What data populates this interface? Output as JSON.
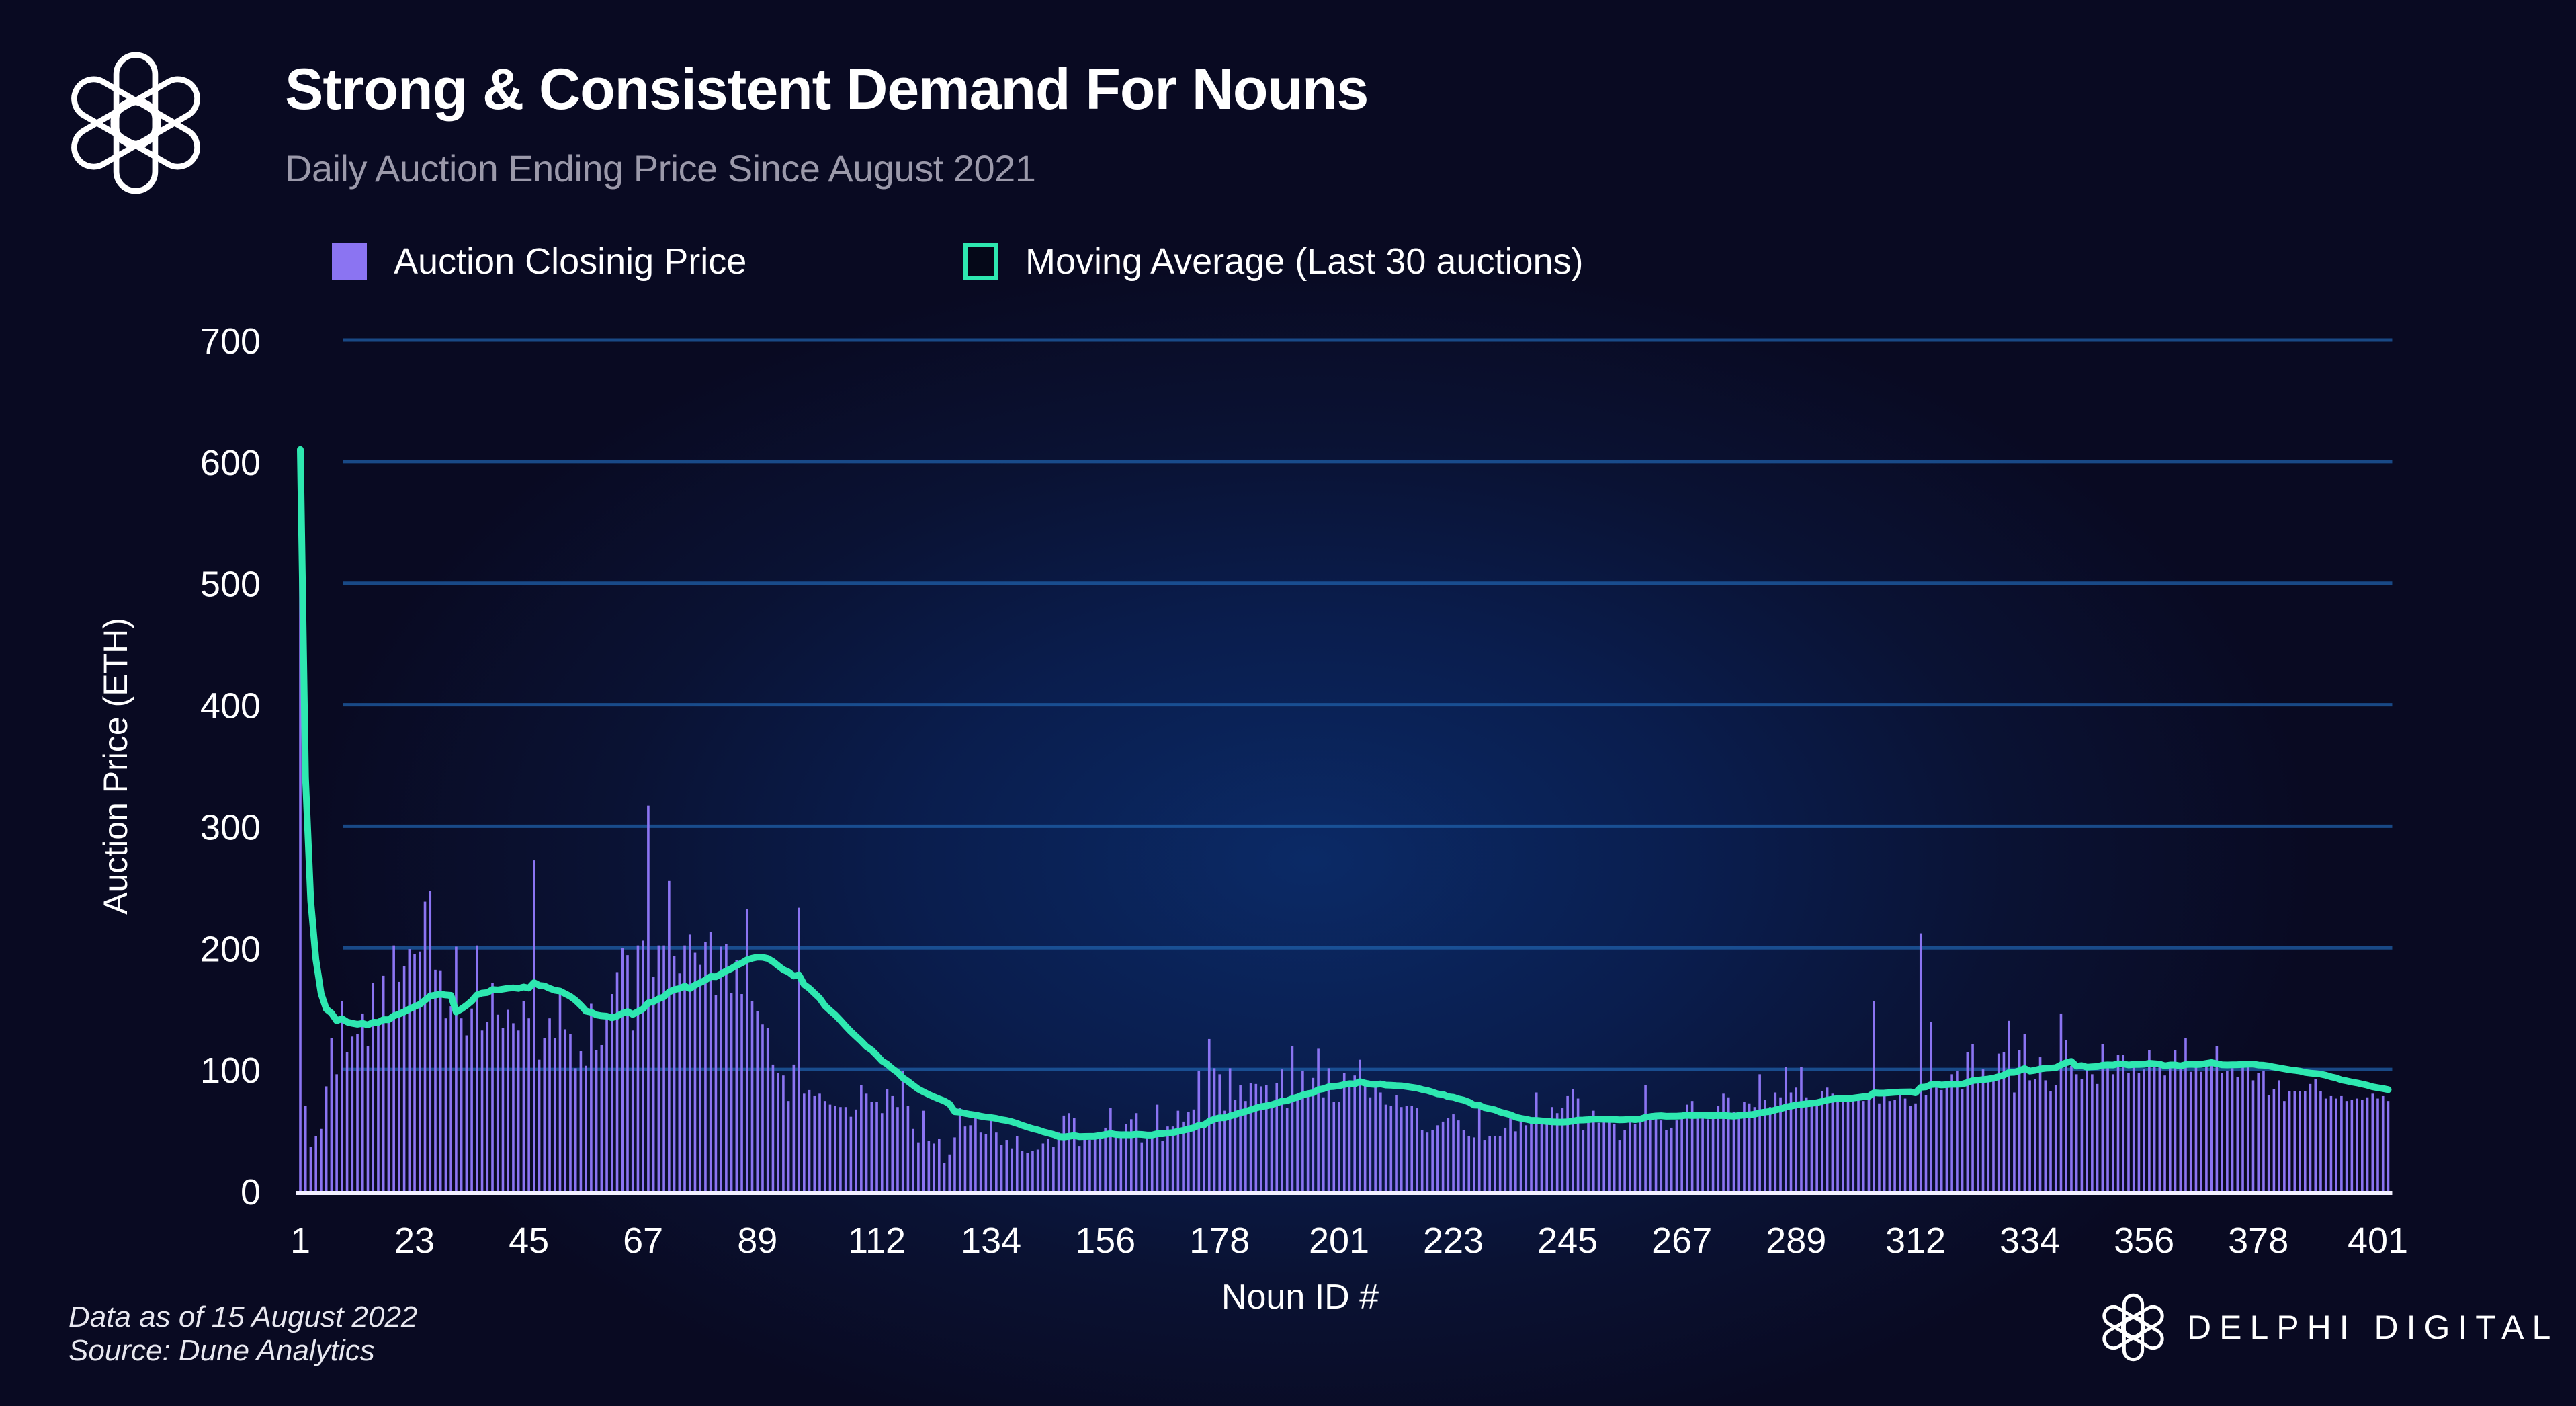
{
  "header": {
    "title": "Strong & Consistent Demand For Nouns",
    "subtitle": "Daily Auction Ending Price Since August 2021",
    "logo_icon": "knot-flower-logo-icon"
  },
  "legend": {
    "bars_label": "Auction Closinig Price",
    "line_label": "Moving Average (Last 30 auctions)"
  },
  "footer": {
    "data_date": "Data as of 15 August 2022",
    "source": "Source: Dune Analytics",
    "brand": "DELPHI DIGITAL"
  },
  "colors": {
    "bars": "#8b74f2",
    "line": "#2ee8b0",
    "gridline": "#1f5fa8",
    "background": "#090a22"
  },
  "chart_data": {
    "type": "bar",
    "title": "Strong & Consistent Demand For Nouns",
    "xlabel": "Noun ID #",
    "ylabel": "Auction Price (ETH)",
    "ylim": [
      0,
      700
    ],
    "yticks": [
      0,
      100,
      200,
      300,
      400,
      500,
      600,
      700
    ],
    "xticks": [
      1,
      23,
      45,
      67,
      89,
      112,
      134,
      156,
      178,
      201,
      223,
      245,
      267,
      289,
      312,
      334,
      356,
      378,
      401
    ],
    "x_start": 1,
    "grid": true,
    "legend_position": "top-left",
    "series": [
      {
        "name": "Auction Closinig Price",
        "type": "bar",
        "values": [
          610,
          70,
          36,
          45,
          51,
          86,
          126,
          96,
          156,
          114,
          127,
          129,
          146,
          119,
          171,
          137,
          177,
          139,
          202,
          172,
          185,
          199,
          195,
          197,
          238,
          247,
          182,
          181,
          142,
          152,
          201,
          142,
          128,
          150,
          202,
          132,
          139,
          171,
          145,
          134,
          149,
          138,
          132,
          156,
          142,
          272,
          108,
          126,
          142,
          126,
          165,
          133,
          129,
          101,
          115,
          103,
          154,
          116,
          120,
          142,
          162,
          180,
          200,
          194,
          132,
          202,
          206,
          317,
          176,
          202,
          202,
          255,
          193,
          179,
          202,
          211,
          196,
          186,
          205,
          213,
          161,
          201,
          203,
          163,
          190,
          162,
          232,
          156,
          148,
          137,
          134,
          104,
          97,
          95,
          74,
          104,
          233,
          80,
          83,
          78,
          80,
          74,
          71,
          70,
          69,
          69,
          61,
          67,
          87,
          80,
          73,
          73,
          64,
          84,
          78,
          69,
          99,
          70,
          51,
          40,
          66,
          41,
          39,
          43,
          23,
          30,
          44,
          68,
          53,
          54,
          61,
          48,
          47,
          59,
          48,
          38,
          42,
          35,
          45,
          33,
          31,
          33,
          34,
          39,
          43,
          36,
          48,
          62,
          64,
          60,
          37,
          46,
          42,
          45,
          45,
          52,
          68,
          45,
          45,
          55,
          59,
          64,
          40,
          44,
          48,
          71,
          41,
          53,
          53,
          66,
          57,
          65,
          67,
          99,
          52,
          125,
          101,
          96,
          66,
          101,
          75,
          87,
          74,
          89,
          88,
          86,
          87,
          72,
          89,
          100,
          68,
          119,
          75,
          99,
          80,
          93,
          117,
          77,
          101,
          73,
          73,
          97,
          88,
          95,
          108,
          87,
          77,
          87,
          81,
          71,
          70,
          79,
          69,
          70,
          70,
          68,
          50,
          48,
          50,
          54,
          57,
          60,
          63,
          58,
          50,
          45,
          44,
          72,
          42,
          45,
          45,
          45,
          52,
          63,
          49,
          57,
          54,
          59,
          81,
          58,
          58,
          69,
          64,
          68,
          78,
          84,
          76,
          50,
          59,
          66,
          56,
          59,
          59,
          55,
          42,
          50,
          59,
          55,
          59,
          87,
          63,
          61,
          58,
          50,
          52,
          58,
          62,
          71,
          74,
          62,
          62,
          59,
          64,
          70,
          80,
          77,
          65,
          65,
          73,
          72,
          69,
          96,
          75,
          69,
          81,
          77,
          102,
          81,
          85,
          102,
          77,
          74,
          74,
          82,
          85,
          80,
          74,
          74,
          74,
          75,
          78,
          74,
          76,
          156,
          72,
          78,
          74,
          75,
          79,
          76,
          70,
          72,
          212,
          79,
          139,
          85,
          83,
          88,
          96,
          99,
          84,
          114,
          121,
          92,
          100,
          93,
          93,
          113,
          114,
          140,
          81,
          116,
          129,
          91,
          92,
          110,
          91,
          82,
          87,
          146,
          124,
          103,
          96,
          92,
          100,
          96,
          88,
          121,
          104,
          96,
          112,
          112,
          97,
          105,
          97,
          100,
          116,
          104,
          104,
          95,
          105,
          116,
          103,
          126,
          98,
          104,
          98,
          104,
          106,
          119,
          97,
          99,
          101,
          94,
          104,
          104,
          91,
          97,
          99,
          79,
          84,
          91,
          74,
          82,
          82,
          82,
          82,
          88,
          92,
          82,
          76,
          78,
          76,
          78,
          74,
          75,
          76,
          75,
          77,
          80,
          76,
          78,
          74
        ]
      },
      {
        "name": "Moving Average (Last 30 auctions)",
        "type": "line",
        "window": 30
      }
    ]
  }
}
